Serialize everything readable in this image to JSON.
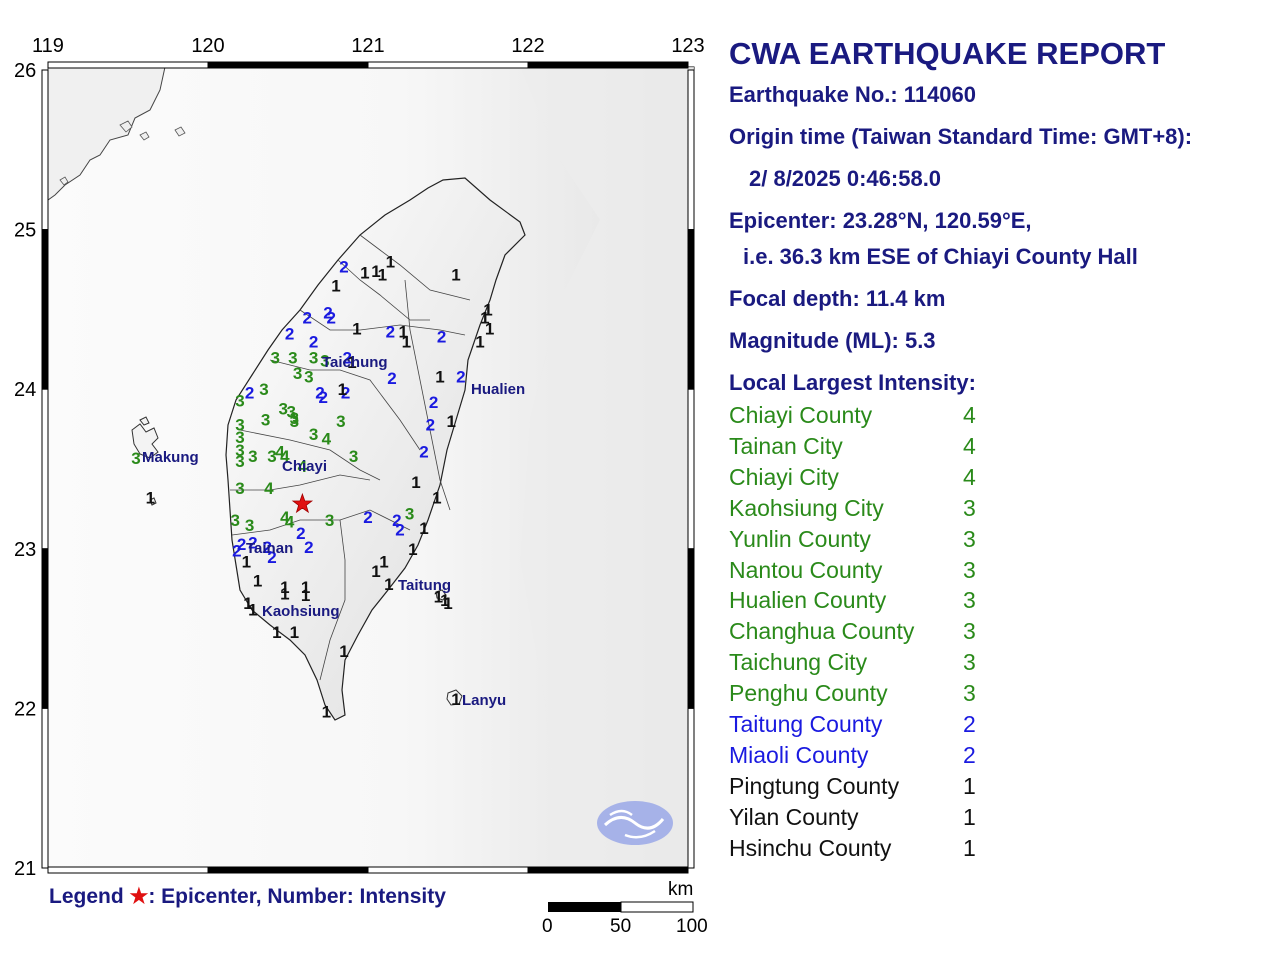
{
  "report": {
    "title": "CWA EARTHQUAKE REPORT",
    "earthquake_no": "Earthquake No.: 114060",
    "origin_label": "Origin time (Taiwan Standard Time: GMT+8):",
    "origin_time": "2/ 8/2025  0:46:58.0",
    "epicenter": "Epicenter: 23.28°N, 120.59°E,",
    "epicenter_rel": "i.e. 36.3 km ESE of Chiayi County Hall",
    "focal_depth": "Focal depth: 11.4 km",
    "magnitude": "Magnitude (ML): 5.3",
    "local_largest_label": "Local Largest Intensity:"
  },
  "intensity_list": [
    {
      "name": "Chiayi County",
      "value": "4",
      "color": "#2a8a1a"
    },
    {
      "name": "Tainan City",
      "value": "4",
      "color": "#2a8a1a"
    },
    {
      "name": "Chiayi City",
      "value": "4",
      "color": "#2a8a1a"
    },
    {
      "name": "Kaohsiung City",
      "value": "3",
      "color": "#2a8a1a"
    },
    {
      "name": "Yunlin County",
      "value": "3",
      "color": "#2a8a1a"
    },
    {
      "name": "Nantou County",
      "value": "3",
      "color": "#2a8a1a"
    },
    {
      "name": "Hualien County",
      "value": "3",
      "color": "#2a8a1a"
    },
    {
      "name": "Changhua County",
      "value": "3",
      "color": "#2a8a1a"
    },
    {
      "name": "Taichung City",
      "value": "3",
      "color": "#2a8a1a"
    },
    {
      "name": "Penghu County",
      "value": "3",
      "color": "#2a8a1a"
    },
    {
      "name": "Taitung County",
      "value": "2",
      "color": "#1a1ae0"
    },
    {
      "name": "Miaoli County",
      "value": "2",
      "color": "#1a1ae0"
    },
    {
      "name": "Pingtung County",
      "value": "1",
      "color": "#111111"
    },
    {
      "name": "Yilan County",
      "value": "1",
      "color": "#111111"
    },
    {
      "name": "Hsinchu County",
      "value": "1",
      "color": "#111111"
    }
  ],
  "legend": {
    "label": "Legend",
    "star": "★",
    "text": ": Epicenter, Number: Intensity"
  },
  "map": {
    "lon_ticks": [
      "119",
      "120",
      "121",
      "122",
      "123"
    ],
    "lat_ticks": [
      "26",
      "25",
      "24",
      "23",
      "22",
      "21"
    ],
    "city_labels": [
      "Makung",
      "Chiayi",
      "Taichung",
      "Hualien",
      "Tainan",
      "Kaohsiung",
      "Taitung",
      "Lanyu"
    ],
    "epicenter": {
      "lat": 23.28,
      "lon": 120.59
    },
    "scale_bar": {
      "unit": "km",
      "labels": [
        "0",
        "50",
        "100"
      ]
    },
    "intensity_colors": {
      "1": "#111111",
      "2": "#1a1ae0",
      "3": "#2a8a1a",
      "4": "#2a8a1a"
    },
    "stations": [
      {
        "lat": 24.77,
        "lon": 120.85,
        "v": "2"
      },
      {
        "lat": 24.73,
        "lon": 120.98,
        "v": "1"
      },
      {
        "lat": 24.74,
        "lon": 121.05,
        "v": "1"
      },
      {
        "lat": 24.8,
        "lon": 121.14,
        "v": "1"
      },
      {
        "lat": 24.72,
        "lon": 121.09,
        "v": "1"
      },
      {
        "lat": 24.65,
        "lon": 120.8,
        "v": "1"
      },
      {
        "lat": 24.72,
        "lon": 121.55,
        "v": "1"
      },
      {
        "lat": 24.45,
        "lon": 120.62,
        "v": "2"
      },
      {
        "lat": 24.48,
        "lon": 120.75,
        "v": "2"
      },
      {
        "lat": 24.45,
        "lon": 120.77,
        "v": "2"
      },
      {
        "lat": 24.35,
        "lon": 120.51,
        "v": "2"
      },
      {
        "lat": 24.3,
        "lon": 120.66,
        "v": "2"
      },
      {
        "lat": 24.38,
        "lon": 120.93,
        "v": "1"
      },
      {
        "lat": 24.36,
        "lon": 121.14,
        "v": "2"
      },
      {
        "lat": 24.36,
        "lon": 121.22,
        "v": "1"
      },
      {
        "lat": 24.3,
        "lon": 121.24,
        "v": "1"
      },
      {
        "lat": 24.33,
        "lon": 121.46,
        "v": "2"
      },
      {
        "lat": 24.3,
        "lon": 121.7,
        "v": "1"
      },
      {
        "lat": 24.45,
        "lon": 121.73,
        "v": "1"
      },
      {
        "lat": 24.5,
        "lon": 121.75,
        "v": "1"
      },
      {
        "lat": 24.38,
        "lon": 121.76,
        "v": "1"
      },
      {
        "lat": 24.2,
        "lon": 120.42,
        "v": "3"
      },
      {
        "lat": 24.2,
        "lon": 120.53,
        "v": "3"
      },
      {
        "lat": 24.2,
        "lon": 120.66,
        "v": "3"
      },
      {
        "lat": 24.18,
        "lon": 120.73,
        "v": "3"
      },
      {
        "lat": 24.2,
        "lon": 120.87,
        "v": "2"
      },
      {
        "lat": 24.17,
        "lon": 120.9,
        "v": "1"
      },
      {
        "lat": 24.1,
        "lon": 120.56,
        "v": "3"
      },
      {
        "lat": 24.08,
        "lon": 120.63,
        "v": "3"
      },
      {
        "lat": 24.07,
        "lon": 121.15,
        "v": "2"
      },
      {
        "lat": 24.08,
        "lon": 121.45,
        "v": "1"
      },
      {
        "lat": 24.08,
        "lon": 121.58,
        "v": "2"
      },
      {
        "lat": 24.0,
        "lon": 120.35,
        "v": "3"
      },
      {
        "lat": 23.98,
        "lon": 120.26,
        "v": "2"
      },
      {
        "lat": 23.98,
        "lon": 120.7,
        "v": "2"
      },
      {
        "lat": 23.98,
        "lon": 120.86,
        "v": "2"
      },
      {
        "lat": 24.0,
        "lon": 120.84,
        "v": "1"
      },
      {
        "lat": 23.95,
        "lon": 120.72,
        "v": "2"
      },
      {
        "lat": 23.93,
        "lon": 120.2,
        "v": "3"
      },
      {
        "lat": 23.88,
        "lon": 120.47,
        "v": "3"
      },
      {
        "lat": 23.86,
        "lon": 120.52,
        "v": "3"
      },
      {
        "lat": 23.8,
        "lon": 120.54,
        "v": "3"
      },
      {
        "lat": 23.92,
        "lon": 121.41,
        "v": "2"
      },
      {
        "lat": 23.78,
        "lon": 120.2,
        "v": "3"
      },
      {
        "lat": 23.81,
        "lon": 120.36,
        "v": "3"
      },
      {
        "lat": 23.82,
        "lon": 120.54,
        "v": "3"
      },
      {
        "lat": 23.8,
        "lon": 120.83,
        "v": "3"
      },
      {
        "lat": 23.78,
        "lon": 121.39,
        "v": "2"
      },
      {
        "lat": 23.8,
        "lon": 121.52,
        "v": "1"
      },
      {
        "lat": 23.7,
        "lon": 120.2,
        "v": "3"
      },
      {
        "lat": 23.72,
        "lon": 120.66,
        "v": "3"
      },
      {
        "lat": 23.69,
        "lon": 120.74,
        "v": "4"
      },
      {
        "lat": 23.57,
        "lon": 119.55,
        "v": "3"
      },
      {
        "lat": 23.62,
        "lon": 120.2,
        "v": "3"
      },
      {
        "lat": 23.58,
        "lon": 120.28,
        "v": "3"
      },
      {
        "lat": 23.61,
        "lon": 120.45,
        "v": "4"
      },
      {
        "lat": 23.58,
        "lon": 120.4,
        "v": "3"
      },
      {
        "lat": 23.58,
        "lon": 120.48,
        "v": "4"
      },
      {
        "lat": 23.58,
        "lon": 120.91,
        "v": "3"
      },
      {
        "lat": 23.61,
        "lon": 121.35,
        "v": "2"
      },
      {
        "lat": 23.52,
        "lon": 120.59,
        "v": "4"
      },
      {
        "lat": 23.55,
        "lon": 120.2,
        "v": "3"
      },
      {
        "lat": 23.38,
        "lon": 120.2,
        "v": "3"
      },
      {
        "lat": 23.38,
        "lon": 120.38,
        "v": "4"
      },
      {
        "lat": 23.42,
        "lon": 121.3,
        "v": "1"
      },
      {
        "lat": 23.32,
        "lon": 121.43,
        "v": "1"
      },
      {
        "lat": 23.18,
        "lon": 120.17,
        "v": "3"
      },
      {
        "lat": 23.15,
        "lon": 120.26,
        "v": "3"
      },
      {
        "lat": 23.2,
        "lon": 120.48,
        "v": "4"
      },
      {
        "lat": 23.17,
        "lon": 120.51,
        "v": "4"
      },
      {
        "lat": 23.18,
        "lon": 120.76,
        "v": "3"
      },
      {
        "lat": 23.2,
        "lon": 121.0,
        "v": "2"
      },
      {
        "lat": 23.18,
        "lon": 121.18,
        "v": "2"
      },
      {
        "lat": 23.12,
        "lon": 121.2,
        "v": "2"
      },
      {
        "lat": 23.22,
        "lon": 121.26,
        "v": "3"
      },
      {
        "lat": 23.13,
        "lon": 121.35,
        "v": "1"
      },
      {
        "lat": 23.1,
        "lon": 120.58,
        "v": "2"
      },
      {
        "lat": 23.03,
        "lon": 120.21,
        "v": "2"
      },
      {
        "lat": 23.04,
        "lon": 120.28,
        "v": "2"
      },
      {
        "lat": 23.01,
        "lon": 120.37,
        "v": "2"
      },
      {
        "lat": 23.01,
        "lon": 120.63,
        "v": "2"
      },
      {
        "lat": 22.99,
        "lon": 120.18,
        "v": "2"
      },
      {
        "lat": 23.0,
        "lon": 121.28,
        "v": "1"
      },
      {
        "lat": 22.95,
        "lon": 120.4,
        "v": "2"
      },
      {
        "lat": 22.92,
        "lon": 120.24,
        "v": "1"
      },
      {
        "lat": 22.92,
        "lon": 121.1,
        "v": "1"
      },
      {
        "lat": 22.86,
        "lon": 121.05,
        "v": "1"
      },
      {
        "lat": 22.8,
        "lon": 120.31,
        "v": "1"
      },
      {
        "lat": 22.76,
        "lon": 120.48,
        "v": "1"
      },
      {
        "lat": 22.76,
        "lon": 120.61,
        "v": "1"
      },
      {
        "lat": 22.78,
        "lon": 121.13,
        "v": "1"
      },
      {
        "lat": 22.72,
        "lon": 120.48,
        "v": "1"
      },
      {
        "lat": 22.71,
        "lon": 120.61,
        "v": "1"
      },
      {
        "lat": 22.66,
        "lon": 120.25,
        "v": "1"
      },
      {
        "lat": 22.62,
        "lon": 120.28,
        "v": "1"
      },
      {
        "lat": 22.7,
        "lon": 121.44,
        "v": "1"
      },
      {
        "lat": 22.68,
        "lon": 121.48,
        "v": "1"
      },
      {
        "lat": 22.48,
        "lon": 120.43,
        "v": "1"
      },
      {
        "lat": 22.48,
        "lon": 120.54,
        "v": "1"
      },
      {
        "lat": 22.36,
        "lon": 120.85,
        "v": "1"
      },
      {
        "lat": 22.06,
        "lon": 121.55,
        "v": "1"
      },
      {
        "lat": 21.98,
        "lon": 120.74,
        "v": "1"
      },
      {
        "lat": 23.32,
        "lon": 119.64,
        "v": "1"
      },
      {
        "lat": 22.66,
        "lon": 121.5,
        "v": "1"
      }
    ]
  }
}
